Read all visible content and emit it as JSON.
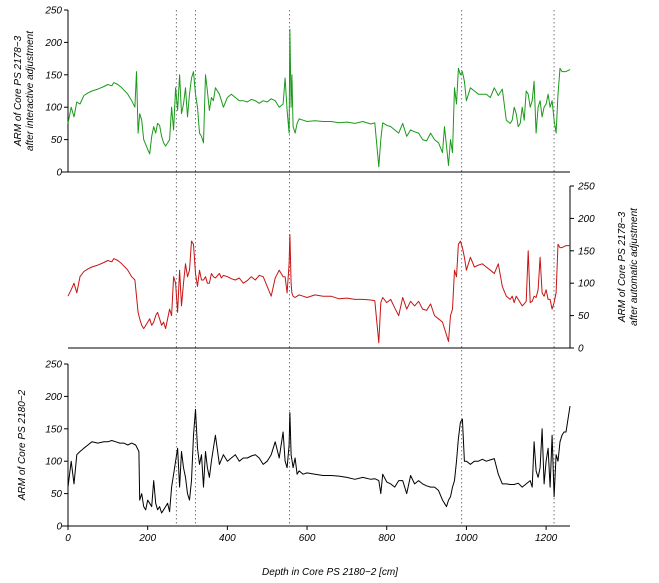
{
  "chart_data": [
    {
      "type": "line",
      "panel": "top",
      "ylabel_lines": [
        "ARM of Core PS 2178−3",
        "after interactive adjustment"
      ],
      "ylim": [
        0,
        250
      ],
      "yticks": [
        0,
        50,
        100,
        150,
        200,
        250
      ],
      "ytick_labels": [
        "0",
        "50",
        "100",
        "150",
        "200",
        "250"
      ],
      "yaxis_side": "left",
      "color": "#1a9a1a",
      "series": [
        {
          "x": [
            0,
            8,
            15,
            22,
            30,
            40,
            50,
            60,
            75,
            90,
            100,
            110,
            115,
            125,
            135,
            150,
            160,
            168,
            172,
            176,
            180,
            185,
            190,
            200,
            205,
            210,
            215,
            220,
            225,
            230,
            235,
            240,
            245,
            255,
            260,
            265,
            270,
            275,
            280,
            285,
            290,
            295,
            300,
            305,
            310,
            315,
            320,
            325,
            330,
            335,
            340,
            345,
            350,
            355,
            360,
            365,
            370,
            380,
            385,
            390,
            400,
            410,
            420,
            430,
            440,
            450,
            460,
            470,
            480,
            490,
            500,
            510,
            520,
            530,
            540,
            545,
            550,
            555,
            557,
            560,
            562,
            565,
            570,
            575,
            580,
            590,
            600,
            620,
            640,
            660,
            680,
            700,
            720,
            740,
            760,
            770,
            780,
            785,
            790,
            800,
            810,
            820,
            830,
            840,
            850,
            860,
            870,
            880,
            890,
            900,
            910,
            920,
            930,
            940,
            945,
            950,
            955,
            960,
            965,
            970,
            975,
            980,
            985,
            990,
            995,
            1000,
            1010,
            1020,
            1030,
            1040,
            1050,
            1060,
            1070,
            1080,
            1090,
            1100,
            1110,
            1115,
            1120,
            1125,
            1130,
            1135,
            1140,
            1145,
            1150,
            1155,
            1160,
            1165,
            1170,
            1175,
            1180,
            1185,
            1190,
            1195,
            1200,
            1205,
            1210,
            1215,
            1220,
            1225,
            1230,
            1235,
            1240,
            1250,
            1260
          ],
          "y": [
            75,
            100,
            85,
            108,
            105,
            118,
            122,
            125,
            128,
            132,
            135,
            133,
            138,
            135,
            130,
            120,
            110,
            100,
            155,
            60,
            90,
            80,
            50,
            35,
            28,
            55,
            70,
            60,
            75,
            72,
            55,
            45,
            40,
            50,
            100,
            65,
            130,
            95,
            150,
            90,
            105,
            130,
            85,
            120,
            145,
            155,
            120,
            100,
            60,
            55,
            45,
            150,
            125,
            95,
            115,
            110,
            130,
            120,
            110,
            100,
            115,
            120,
            115,
            110,
            110,
            108,
            112,
            110,
            106,
            110,
            108,
            113,
            110,
            100,
            105,
            145,
            95,
            60,
            220,
            100,
            150,
            70,
            60,
            75,
            82,
            80,
            78,
            79,
            78,
            78,
            76,
            77,
            75,
            78,
            74,
            76,
            8,
            50,
            76,
            72,
            70,
            65,
            60,
            75,
            55,
            65,
            62,
            60,
            50,
            48,
            60,
            50,
            45,
            30,
            70,
            40,
            10,
            50,
            30,
            130,
            105,
            160,
            150,
            155,
            140,
            110,
            130,
            125,
            120,
            120,
            120,
            115,
            130,
            118,
            128,
            80,
            75,
            80,
            100,
            90,
            70,
            75,
            100,
            80,
            125,
            120,
            100,
            110,
            140,
            60,
            100,
            110,
            85,
            100,
            105,
            120,
            100,
            110,
            80,
            60,
            120,
            160,
            155,
            155,
            158
          ]
        }
      ]
    },
    {
      "type": "line",
      "panel": "middle",
      "ylabel_lines": [
        "ARM of Core PS 2178−3",
        "after automatic adjustment"
      ],
      "ylim": [
        0,
        250
      ],
      "yticks": [
        0,
        50,
        100,
        150,
        200,
        250
      ],
      "ytick_labels": [
        "0",
        "50",
        "100",
        "150",
        "200",
        "250"
      ],
      "yaxis_side": "right",
      "color": "#c81414",
      "series": [
        {
          "x": [
            0,
            8,
            15,
            22,
            30,
            40,
            50,
            60,
            75,
            90,
            100,
            110,
            115,
            125,
            135,
            150,
            160,
            168,
            172,
            176,
            180,
            185,
            190,
            200,
            205,
            210,
            215,
            220,
            225,
            230,
            235,
            240,
            245,
            255,
            260,
            265,
            270,
            275,
            280,
            285,
            290,
            295,
            300,
            305,
            310,
            315,
            320,
            325,
            330,
            335,
            340,
            345,
            350,
            355,
            360,
            365,
            370,
            380,
            385,
            390,
            400,
            410,
            420,
            430,
            440,
            450,
            460,
            470,
            480,
            490,
            500,
            510,
            520,
            530,
            540,
            545,
            550,
            555,
            557,
            560,
            562,
            565,
            570,
            575,
            580,
            590,
            600,
            620,
            640,
            660,
            680,
            700,
            720,
            740,
            760,
            770,
            780,
            785,
            790,
            800,
            810,
            820,
            830,
            840,
            850,
            860,
            870,
            880,
            890,
            900,
            910,
            920,
            930,
            940,
            945,
            950,
            955,
            960,
            965,
            970,
            975,
            980,
            985,
            990,
            995,
            1000,
            1010,
            1020,
            1030,
            1040,
            1050,
            1060,
            1070,
            1080,
            1090,
            1100,
            1110,
            1115,
            1120,
            1125,
            1130,
            1135,
            1140,
            1145,
            1150,
            1155,
            1160,
            1165,
            1170,
            1175,
            1180,
            1185,
            1190,
            1195,
            1200,
            1205,
            1210,
            1215,
            1220,
            1225,
            1230,
            1235,
            1240,
            1250,
            1260
          ],
          "y": [
            80,
            90,
            100,
            85,
            110,
            118,
            122,
            125,
            128,
            132,
            135,
            133,
            138,
            135,
            130,
            120,
            110,
            105,
            80,
            55,
            45,
            35,
            30,
            40,
            45,
            35,
            40,
            50,
            55,
            45,
            35,
            40,
            30,
            60,
            50,
            110,
            100,
            55,
            120,
            65,
            100,
            130,
            110,
            120,
            165,
            160,
            115,
            95,
            120,
            105,
            105,
            110,
            100,
            100,
            115,
            110,
            108,
            115,
            108,
            112,
            110,
            107,
            105,
            108,
            100,
            104,
            110,
            105,
            112,
            110,
            95,
            80,
            108,
            120,
            110,
            110,
            85,
            130,
            175,
            100,
            85,
            80,
            78,
            80,
            82,
            80,
            78,
            82,
            80,
            80,
            76,
            77,
            75,
            75,
            74,
            73,
            8,
            70,
            78,
            70,
            75,
            62,
            50,
            78,
            60,
            72,
            65,
            72,
            60,
            58,
            68,
            50,
            45,
            40,
            30,
            20,
            10,
            50,
            60,
            120,
            110,
            160,
            165,
            155,
            140,
            120,
            140,
            125,
            128,
            130,
            125,
            120,
            115,
            130,
            95,
            80,
            75,
            80,
            70,
            80,
            75,
            70,
            65,
            68,
            72,
            150,
            70,
            72,
            80,
            78,
            90,
            140,
            85,
            80,
            90,
            75,
            75,
            60,
            70,
            85,
            160,
            155,
            155,
            158,
            158
          ]
        }
      ]
    },
    {
      "type": "line",
      "panel": "bottom",
      "ylabel_lines": [
        "ARM of Core PS 2180−2"
      ],
      "xlabel": "Depth in Core PS 2180−2  [cm]",
      "xlim": [
        0,
        1260
      ],
      "xticks": [
        0,
        200,
        400,
        600,
        800,
        1000,
        1200
      ],
      "xtick_labels": [
        "0",
        "200",
        "400",
        "600",
        "800",
        "1000",
        "1200"
      ],
      "ylim": [
        0,
        250
      ],
      "yticks": [
        0,
        50,
        100,
        150,
        200,
        250
      ],
      "ytick_labels": [
        "0",
        "50",
        "100",
        "150",
        "200",
        "250"
      ],
      "yaxis_side": "left",
      "color": "#000000",
      "series": [
        {
          "x": [
            0,
            8,
            15,
            22,
            30,
            40,
            50,
            60,
            75,
            90,
            100,
            110,
            120,
            130,
            140,
            150,
            160,
            170,
            178,
            180,
            185,
            190,
            195,
            200,
            205,
            210,
            215,
            220,
            225,
            230,
            235,
            240,
            245,
            250,
            255,
            260,
            265,
            270,
            275,
            280,
            285,
            290,
            295,
            300,
            305,
            310,
            315,
            320,
            325,
            330,
            335,
            340,
            345,
            350,
            355,
            360,
            365,
            370,
            380,
            390,
            400,
            410,
            420,
            430,
            440,
            450,
            460,
            470,
            480,
            490,
            500,
            510,
            520,
            530,
            540,
            545,
            550,
            555,
            557,
            560,
            565,
            570,
            575,
            580,
            590,
            600,
            620,
            640,
            660,
            680,
            700,
            720,
            740,
            760,
            770,
            780,
            785,
            790,
            800,
            810,
            820,
            830,
            840,
            850,
            860,
            870,
            880,
            890,
            900,
            910,
            920,
            930,
            940,
            945,
            950,
            955,
            960,
            965,
            970,
            975,
            980,
            985,
            990,
            995,
            1000,
            1010,
            1020,
            1030,
            1040,
            1050,
            1060,
            1070,
            1080,
            1090,
            1100,
            1110,
            1120,
            1130,
            1140,
            1150,
            1160,
            1165,
            1170,
            1175,
            1180,
            1185,
            1190,
            1195,
            1200,
            1205,
            1210,
            1215,
            1220,
            1225,
            1230,
            1235,
            1240,
            1245,
            1250,
            1260
          ],
          "y": [
            60,
            100,
            65,
            110,
            115,
            120,
            125,
            130,
            128,
            130,
            130,
            132,
            130,
            128,
            128,
            125,
            128,
            125,
            115,
            40,
            50,
            30,
            25,
            40,
            35,
            30,
            70,
            35,
            25,
            30,
            20,
            25,
            30,
            35,
            22,
            60,
            80,
            100,
            120,
            60,
            115,
            90,
            75,
            50,
            40,
            70,
            140,
            180,
            120,
            95,
            110,
            60,
            115,
            90,
            75,
            100,
            120,
            140,
            95,
            110,
            100,
            105,
            110,
            100,
            105,
            105,
            108,
            110,
            105,
            95,
            100,
            110,
            130,
            105,
            145,
            100,
            90,
            125,
            175,
            110,
            90,
            105,
            80,
            85,
            80,
            82,
            80,
            78,
            78,
            77,
            75,
            72,
            75,
            72,
            73,
            70,
            50,
            80,
            68,
            65,
            60,
            70,
            70,
            50,
            78,
            65,
            70,
            65,
            62,
            60,
            60,
            55,
            40,
            35,
            30,
            40,
            45,
            60,
            70,
            100,
            135,
            160,
            165,
            100,
            100,
            95,
            100,
            100,
            103,
            100,
            102,
            104,
            80,
            65,
            65,
            64,
            64,
            66,
            60,
            65,
            70,
            60,
            130,
            85,
            75,
            90,
            150,
            65,
            100,
            120,
            60,
            140,
            45,
            110,
            100,
            130,
            140,
            145,
            145,
            185
          ]
        }
      ]
    }
  ]
}
